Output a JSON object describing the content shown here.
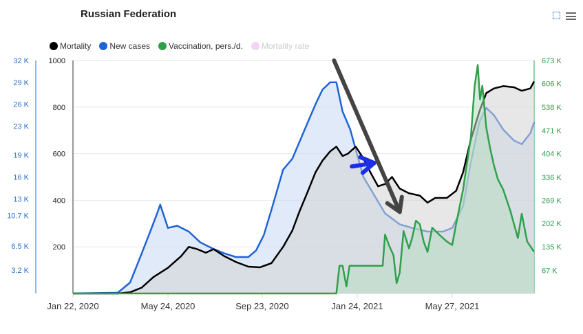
{
  "title": "Russian Federation",
  "legend": [
    {
      "label": "Mortality",
      "color": "#000000",
      "active": true
    },
    {
      "label": "New cases",
      "color": "#1f64d6",
      "active": true
    },
    {
      "label": "Vaccination, pers./d.",
      "color": "#2fa04a",
      "active": true
    },
    {
      "label": "Mortality rate",
      "color": "#f4d4f6",
      "active": false
    }
  ],
  "chart_data": {
    "type": "area",
    "title": "Russian Federation",
    "x_axis": {
      "tick_labels": [
        "Jan 22, 2020",
        "May 24, 2020",
        "Sep 23, 2020",
        "Jan 24, 2021",
        "May 27, 2021"
      ],
      "range": [
        "2020-01-22",
        "2021-09-10"
      ]
    },
    "y_axes": {
      "mortality": {
        "ticks": [
          "200",
          "400",
          "600",
          "800",
          "1000"
        ],
        "range": [
          0,
          1000
        ],
        "color": "#222222"
      },
      "new_cases": {
        "ticks": [
          "3.2 K",
          "6.5 K",
          "10.7 K",
          "13 K",
          "16 K",
          "19 K",
          "23 K",
          "26 K",
          "29 K",
          "32 K"
        ],
        "range": [
          0,
          32000
        ],
        "color": "#2a6fcc"
      },
      "vaccination": {
        "ticks": [
          "67 K",
          "135 K",
          "202 K",
          "269 K",
          "336 K",
          "404 K",
          "471 K",
          "538 K",
          "606 K",
          "673 K"
        ],
        "range": [
          0,
          673000
        ],
        "color": "#2fa04a"
      }
    },
    "grid": true,
    "series": [
      {
        "name": "Mortality",
        "color": "#000000",
        "fill": "#d4d4d4",
        "axis": "mortality",
        "points": [
          [
            "2020-01-22",
            0
          ],
          [
            "2020-03-20",
            0
          ],
          [
            "2020-04-05",
            5
          ],
          [
            "2020-04-20",
            25
          ],
          [
            "2020-05-05",
            70
          ],
          [
            "2020-05-24",
            110
          ],
          [
            "2020-06-10",
            160
          ],
          [
            "2020-06-20",
            200
          ],
          [
            "2020-07-01",
            190
          ],
          [
            "2020-07-12",
            175
          ],
          [
            "2020-07-22",
            190
          ],
          [
            "2020-08-05",
            160
          ],
          [
            "2020-08-20",
            135
          ],
          [
            "2020-09-05",
            115
          ],
          [
            "2020-09-20",
            112
          ],
          [
            "2020-10-05",
            130
          ],
          [
            "2020-10-20",
            200
          ],
          [
            "2020-11-01",
            270
          ],
          [
            "2020-11-10",
            350
          ],
          [
            "2020-11-20",
            430
          ],
          [
            "2020-12-01",
            520
          ],
          [
            "2020-12-10",
            570
          ],
          [
            "2020-12-20",
            610
          ],
          [
            "2020-12-28",
            630
          ],
          [
            "2021-01-05",
            590
          ],
          [
            "2021-01-12",
            600
          ],
          [
            "2021-01-22",
            630
          ],
          [
            "2021-02-01",
            580
          ],
          [
            "2021-02-10",
            520
          ],
          [
            "2021-02-20",
            460
          ],
          [
            "2021-03-01",
            470
          ],
          [
            "2021-03-10",
            500
          ],
          [
            "2021-03-20",
            450
          ],
          [
            "2021-04-01",
            430
          ],
          [
            "2021-04-15",
            420
          ],
          [
            "2021-04-25",
            390
          ],
          [
            "2021-05-05",
            410
          ],
          [
            "2021-05-20",
            410
          ],
          [
            "2021-06-01",
            440
          ],
          [
            "2021-06-10",
            520
          ],
          [
            "2021-06-20",
            660
          ],
          [
            "2021-07-01",
            780
          ],
          [
            "2021-07-10",
            860
          ],
          [
            "2021-07-20",
            880
          ],
          [
            "2021-08-01",
            890
          ],
          [
            "2021-08-15",
            885
          ],
          [
            "2021-08-25",
            870
          ],
          [
            "2021-09-05",
            880
          ],
          [
            "2021-09-10",
            910
          ]
        ]
      },
      {
        "name": "New cases",
        "color": "#1f64d6",
        "fill": "#c9d8f2",
        "axis": "new_cases",
        "points": [
          [
            "2020-01-22",
            0
          ],
          [
            "2020-03-20",
            100
          ],
          [
            "2020-04-05",
            1500
          ],
          [
            "2020-04-20",
            5500
          ],
          [
            "2020-05-01",
            8500
          ],
          [
            "2020-05-10",
            11000
          ],
          [
            "2020-05-14",
            12200
          ],
          [
            "2020-05-24",
            9000
          ],
          [
            "2020-06-05",
            9300
          ],
          [
            "2020-06-20",
            8500
          ],
          [
            "2020-07-05",
            7000
          ],
          [
            "2020-07-20",
            6200
          ],
          [
            "2020-08-05",
            5500
          ],
          [
            "2020-08-20",
            5000
          ],
          [
            "2020-09-05",
            5000
          ],
          [
            "2020-09-15",
            5900
          ],
          [
            "2020-09-25",
            8000
          ],
          [
            "2020-10-05",
            11500
          ],
          [
            "2020-10-20",
            17000
          ],
          [
            "2020-11-01",
            18500
          ],
          [
            "2020-11-15",
            22000
          ],
          [
            "2020-12-01",
            26000
          ],
          [
            "2020-12-10",
            28000
          ],
          [
            "2020-12-20",
            29000
          ],
          [
            "2020-12-28",
            29000
          ],
          [
            "2021-01-05",
            25000
          ],
          [
            "2021-01-15",
            22500
          ],
          [
            "2021-01-24",
            19000
          ],
          [
            "2021-02-01",
            16000
          ],
          [
            "2021-02-15",
            13500
          ],
          [
            "2021-03-01",
            11000
          ],
          [
            "2021-03-20",
            9500
          ],
          [
            "2021-04-05",
            9000
          ],
          [
            "2021-04-25",
            8500
          ],
          [
            "2021-05-15",
            8500
          ],
          [
            "2021-05-27",
            9000
          ],
          [
            "2021-06-10",
            12000
          ],
          [
            "2021-06-20",
            18000
          ],
          [
            "2021-07-01",
            23500
          ],
          [
            "2021-07-10",
            25500
          ],
          [
            "2021-07-20",
            24500
          ],
          [
            "2021-08-01",
            22500
          ],
          [
            "2021-08-15",
            21000
          ],
          [
            "2021-08-25",
            20500
          ],
          [
            "2021-09-05",
            22000
          ],
          [
            "2021-09-10",
            23500
          ]
        ]
      },
      {
        "name": "Vaccination, pers./d.",
        "color": "#2fa04a",
        "fill": "#b8dcc3",
        "axis": "vaccination",
        "points": [
          [
            "2020-01-22",
            0
          ],
          [
            "2020-12-28",
            0
          ],
          [
            "2021-01-01",
            80000
          ],
          [
            "2021-01-05",
            80000
          ],
          [
            "2021-01-10",
            20000
          ],
          [
            "2021-01-14",
            80000
          ],
          [
            "2021-02-01",
            80000
          ],
          [
            "2021-02-26",
            80000
          ],
          [
            "2021-03-01",
            170000
          ],
          [
            "2021-03-06",
            140000
          ],
          [
            "2021-03-12",
            110000
          ],
          [
            "2021-03-16",
            30000
          ],
          [
            "2021-03-20",
            60000
          ],
          [
            "2021-03-25",
            180000
          ],
          [
            "2021-04-01",
            130000
          ],
          [
            "2021-04-05",
            160000
          ],
          [
            "2021-04-10",
            210000
          ],
          [
            "2021-04-15",
            200000
          ],
          [
            "2021-04-20",
            150000
          ],
          [
            "2021-04-25",
            120000
          ],
          [
            "2021-05-01",
            190000
          ],
          [
            "2021-05-10",
            170000
          ],
          [
            "2021-05-20",
            150000
          ],
          [
            "2021-05-27",
            140000
          ],
          [
            "2021-06-01",
            200000
          ],
          [
            "2021-06-10",
            300000
          ],
          [
            "2021-06-20",
            450000
          ],
          [
            "2021-06-25",
            600000
          ],
          [
            "2021-06-29",
            660000
          ],
          [
            "2021-07-02",
            560000
          ],
          [
            "2021-07-05",
            600000
          ],
          [
            "2021-07-10",
            480000
          ],
          [
            "2021-07-15",
            420000
          ],
          [
            "2021-07-20",
            370000
          ],
          [
            "2021-07-25",
            330000
          ],
          [
            "2021-08-01",
            300000
          ],
          [
            "2021-08-10",
            240000
          ],
          [
            "2021-08-20",
            160000
          ],
          [
            "2021-08-25",
            230000
          ],
          [
            "2021-09-01",
            150000
          ],
          [
            "2021-09-10",
            120000
          ]
        ]
      }
    ],
    "annotations": [
      {
        "type": "arrow",
        "color": "#444444",
        "from": [
          "2020-12-25",
          1000
        ],
        "to": [
          "2021-03-20",
          350
        ]
      },
      {
        "type": "arrow",
        "color": "#1a2fe6",
        "from": [
          "2021-01-17",
          545
        ],
        "to": [
          "2021-02-15",
          560
        ]
      }
    ]
  }
}
